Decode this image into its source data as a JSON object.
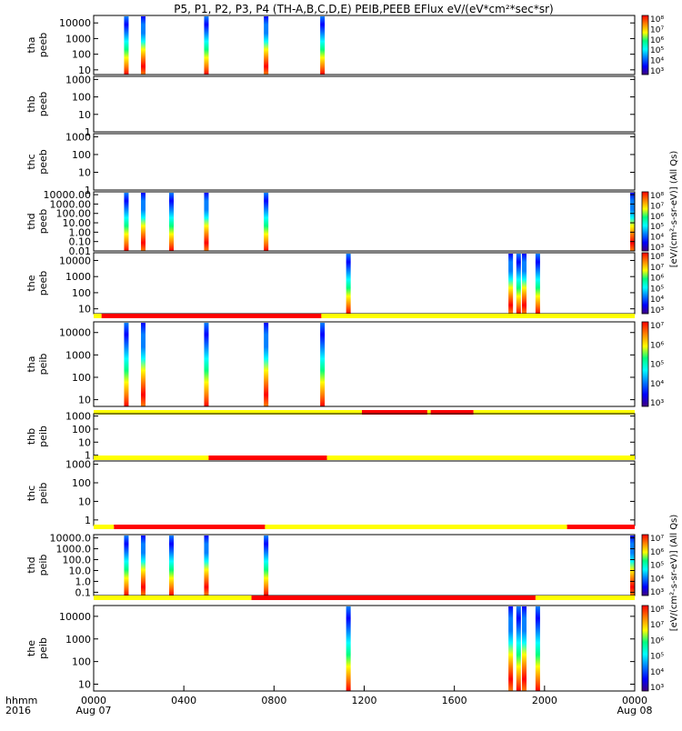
{
  "title": "P5, P1, P2, P3, P4 (TH-A,B,C,D,E) PEIB,PEEB EFlux eV/(eV*cm²*sec*sr)",
  "x_axis": {
    "row_label_top": "hhmm",
    "row_label_bottom": "2016",
    "ticks": [
      {
        "label": "0000",
        "sub": "Aug 07",
        "hour": 0
      },
      {
        "label": "0400",
        "sub": "",
        "hour": 4
      },
      {
        "label": "0800",
        "sub": "",
        "hour": 8
      },
      {
        "label": "1200",
        "sub": "",
        "hour": 12
      },
      {
        "label": "1600",
        "sub": "",
        "hour": 16
      },
      {
        "label": "2000",
        "sub": "",
        "hour": 20
      },
      {
        "label": "0000",
        "sub": "Aug 08",
        "hour": 24
      }
    ],
    "range_hours": [
      0,
      24
    ]
  },
  "colorbar_labels": {
    "peeb": "[eV/(cm²-s-sr-eV)] (All Qs)",
    "peib": "[eV/(cm²-s-sr-eV)] (All Qs)"
  },
  "chart_data": [
    {
      "type": "heatmap",
      "name": "tha-peeb",
      "ylabel": "tha\npeeb",
      "yticks": [
        "10",
        "100",
        "1000",
        "10000"
      ],
      "ylim": [
        5,
        30000
      ],
      "yscale": "log",
      "colorbar_ticks": [
        "10³",
        "10⁴",
        "10⁵",
        "10⁶",
        "10⁷",
        "10⁸"
      ],
      "bursts_hours": [
        1.45,
        2.2,
        5.0,
        7.65,
        10.15
      ],
      "status_bar": null
    },
    {
      "type": "heatmap",
      "name": "thb-peeb",
      "ylabel": "thb\npeeb",
      "yticks": [
        "1",
        "10",
        "100",
        "1000"
      ],
      "ylim": [
        1,
        1500
      ],
      "yscale": "log",
      "colorbar_ticks": [],
      "bursts_hours": [],
      "status_bar": null
    },
    {
      "type": "heatmap",
      "name": "thc-peeb",
      "ylabel": "thc\npeeb",
      "yticks": [
        "1",
        "10",
        "100",
        "1000"
      ],
      "ylim": [
        1,
        1500
      ],
      "yscale": "log",
      "colorbar_ticks": [],
      "bursts_hours": [],
      "status_bar": null
    },
    {
      "type": "heatmap",
      "name": "thd-peeb",
      "ylabel": "thd\npeeb",
      "yticks": [
        "0.01",
        "0.10",
        "1.00",
        "10.00",
        "100.00",
        "1000.00",
        "10000.00"
      ],
      "ylim": [
        0.01,
        20000
      ],
      "yscale": "log",
      "colorbar_ticks": [
        "10³",
        "10⁴",
        "10⁵",
        "10⁶",
        "10⁷",
        "10⁸"
      ],
      "bursts_hours": [
        1.45,
        2.2,
        3.45,
        5.0,
        7.65,
        23.9
      ],
      "status_bar": null
    },
    {
      "type": "heatmap",
      "name": "the-peeb",
      "ylabel": "the\npeeb",
      "yticks": [
        "10",
        "100",
        "1000",
        "10000"
      ],
      "ylim": [
        5,
        30000
      ],
      "yscale": "log",
      "colorbar_ticks": [
        "10³",
        "10⁴",
        "10⁵",
        "10⁶",
        "10⁷",
        "10⁸"
      ],
      "bursts_hours": [
        11.3,
        18.5,
        18.85,
        19.1,
        19.7
      ],
      "status_bar": [
        {
          "from": 0,
          "to": 0.35,
          "color": "yellow"
        },
        {
          "from": 0.35,
          "to": 10.1,
          "color": "red"
        },
        {
          "from": 10.1,
          "to": 24,
          "color": "yellow"
        }
      ]
    },
    {
      "type": "heatmap",
      "name": "tha-peib",
      "ylabel": "tha\npeib",
      "yticks": [
        "10",
        "100",
        "1000",
        "10000"
      ],
      "ylim": [
        5,
        30000
      ],
      "yscale": "log",
      "colorbar_ticks": [
        "10³",
        "10⁴",
        "10⁵",
        "10⁶",
        "10⁷"
      ],
      "bursts_hours": [
        1.45,
        2.2,
        5.0,
        7.65,
        10.15
      ],
      "status_bar": [
        {
          "from": 0,
          "to": 11.9,
          "color": "yellow"
        },
        {
          "from": 11.9,
          "to": 14.8,
          "color": "red"
        },
        {
          "from": 14.8,
          "to": 14.95,
          "color": "yellow"
        },
        {
          "from": 14.95,
          "to": 16.85,
          "color": "red"
        },
        {
          "from": 16.85,
          "to": 24,
          "color": "yellow"
        }
      ]
    },
    {
      "type": "heatmap",
      "name": "thb-peib",
      "ylabel": "thb\npeib",
      "yticks": [
        "1",
        "10",
        "100",
        "1000"
      ],
      "ylim": [
        0.5,
        1500
      ],
      "yscale": "log",
      "colorbar_ticks": [],
      "bursts_hours": [],
      "status_bar": [
        {
          "from": 0,
          "to": 5.1,
          "color": "yellow"
        },
        {
          "from": 5.1,
          "to": 10.35,
          "color": "red"
        },
        {
          "from": 10.35,
          "to": 24,
          "color": "yellow"
        }
      ]
    },
    {
      "type": "heatmap",
      "name": "thc-peib",
      "ylabel": "thc\npeib",
      "yticks": [
        "1",
        "10",
        "100",
        "1000"
      ],
      "ylim": [
        0.5,
        1500
      ],
      "yscale": "log",
      "colorbar_ticks": [],
      "bursts_hours": [],
      "status_bar": [
        {
          "from": 0,
          "to": 0.9,
          "color": "yellow"
        },
        {
          "from": 0.9,
          "to": 7.6,
          "color": "red"
        },
        {
          "from": 7.6,
          "to": 21.0,
          "color": "yellow"
        },
        {
          "from": 21.0,
          "to": 24,
          "color": "red"
        }
      ]
    },
    {
      "type": "heatmap",
      "name": "thd-peib",
      "ylabel": "thd\npeib",
      "yticks": [
        "0.1",
        "1.0",
        "10.0",
        "100.0",
        "1000.0",
        "10000.0"
      ],
      "ylim": [
        0.05,
        20000
      ],
      "yscale": "log",
      "colorbar_ticks": [
        "10³",
        "10⁴",
        "10⁵",
        "10⁶",
        "10⁷"
      ],
      "bursts_hours": [
        1.45,
        2.2,
        3.45,
        5.0,
        7.65,
        23.9
      ],
      "status_bar": [
        {
          "from": 0,
          "to": 7.0,
          "color": "yellow"
        },
        {
          "from": 7.0,
          "to": 19.6,
          "color": "red"
        },
        {
          "from": 19.6,
          "to": 24,
          "color": "yellow"
        }
      ]
    },
    {
      "type": "heatmap",
      "name": "the-peib",
      "ylabel": "the\npeib",
      "yticks": [
        "10",
        "100",
        "1000",
        "10000"
      ],
      "ylim": [
        5,
        30000
      ],
      "yscale": "log",
      "colorbar_ticks": [
        "10³",
        "10⁴",
        "10⁵",
        "10⁶",
        "10⁷",
        "10⁸"
      ],
      "bursts_hours": [
        11.3,
        18.5,
        18.85,
        19.1,
        19.7
      ],
      "status_bar": null
    }
  ],
  "colors": {
    "status_yellow": "#ffff00",
    "status_red": "#ff0000",
    "colormap": [
      "#40007f",
      "#0000ff",
      "#0080ff",
      "#00ffff",
      "#00ff80",
      "#ffff00",
      "#ff8000",
      "#ff0000"
    ]
  }
}
